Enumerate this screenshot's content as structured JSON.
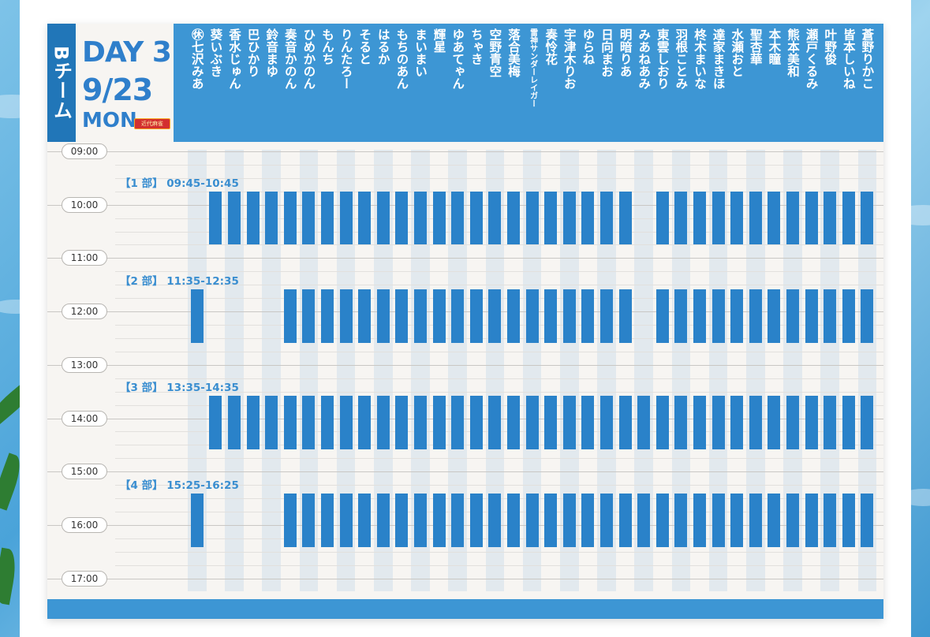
{
  "team": "Bチーム",
  "day": {
    "line1": "DAY 3",
    "line2": "9/23",
    "line3": "MON",
    "logo_text": "近代麻雀"
  },
  "times": [
    "09:00",
    "10:00",
    "11:00",
    "12:00",
    "13:00",
    "14:00",
    "15:00",
    "16:00",
    "17:00"
  ],
  "sessions": [
    {
      "label": "【1 部】 09:45-10:45"
    },
    {
      "label": "【2 部】 11:35-12:35"
    },
    {
      "label": "【3 部】 13:35-14:35"
    },
    {
      "label": "【4 部】 15:25-16:25"
    }
  ],
  "members": [
    "㊡七沢みあ",
    "葵いぶき",
    "香水じゅん",
    "巴ひかり",
    "鈴音まゆ",
    "奏音かのん",
    "ひめかのん",
    "もんち",
    "りんたろー",
    "そると",
    "はるか",
    "もちのあん",
    "まいまい",
    "輝星",
    "ゆあてゃん",
    "ちゃき",
    "空野青空",
    "落合美梅",
    "雷神サンダーレイガー",
    "奏怜花",
    "宇津木りお",
    "ゆらね",
    "日向まお",
    "明暗りあ",
    "みあねあみ",
    "東雲しおり",
    "羽根ことみ",
    "柊木まいな",
    "達家まきほ",
    "水瀬おと",
    "聖杏華",
    "本木瞳",
    "熊本美和",
    "瀬戸くるみ",
    "叶野俊",
    "皆本しいね",
    "蒼野りかこ"
  ],
  "schedule": [
    [
      0,
      1,
      1,
      1,
      1,
      1,
      1,
      1,
      1,
      1,
      1,
      1,
      1,
      1,
      1,
      1,
      1,
      1,
      1,
      1,
      1,
      1,
      1,
      1,
      0,
      1,
      1,
      1,
      1,
      1,
      1,
      1,
      1,
      1,
      1,
      1,
      1
    ],
    [
      1,
      0,
      0,
      0,
      0,
      1,
      1,
      1,
      1,
      1,
      1,
      1,
      1,
      1,
      1,
      1,
      1,
      1,
      1,
      1,
      1,
      1,
      1,
      1,
      0,
      1,
      1,
      1,
      1,
      1,
      1,
      1,
      1,
      1,
      1,
      1,
      1
    ],
    [
      0,
      1,
      1,
      1,
      1,
      1,
      1,
      1,
      1,
      1,
      1,
      1,
      1,
      1,
      1,
      1,
      1,
      1,
      1,
      1,
      1,
      1,
      1,
      1,
      1,
      1,
      1,
      1,
      1,
      1,
      1,
      1,
      1,
      1,
      1,
      1,
      1
    ],
    [
      1,
      0,
      0,
      0,
      0,
      1,
      1,
      1,
      1,
      1,
      1,
      1,
      1,
      1,
      1,
      1,
      1,
      1,
      1,
      1,
      1,
      1,
      1,
      1,
      1,
      1,
      1,
      1,
      1,
      1,
      1,
      1,
      1,
      1,
      1,
      1,
      1
    ]
  ]
}
